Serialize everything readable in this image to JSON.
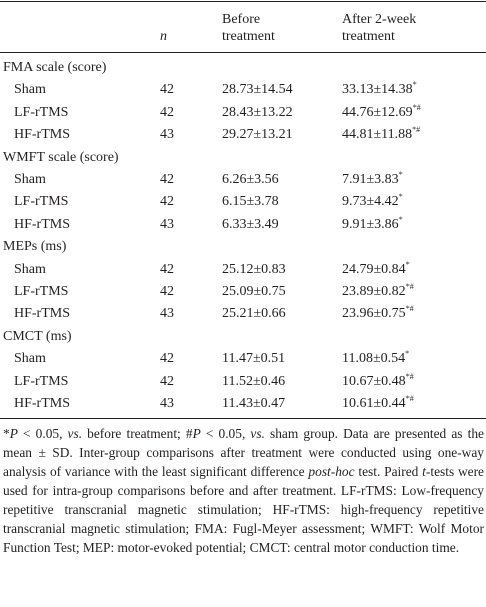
{
  "header": {
    "n": "n",
    "before": "Before treatment",
    "after": "After 2-week treatment"
  },
  "sections": [
    {
      "title": "FMA scale (score)",
      "rows": [
        {
          "group": "Sham",
          "n": 42,
          "before": "28.73±14.54",
          "after": "33.13±14.38",
          "mark": "*"
        },
        {
          "group": "LF-rTMS",
          "n": 42,
          "before": "28.43±13.22",
          "after": "44.76±12.69",
          "mark": "*#"
        },
        {
          "group": "HF-rTMS",
          "n": 43,
          "before": "29.27±13.21",
          "after": "44.81±11.88",
          "mark": "*#"
        }
      ]
    },
    {
      "title": "WMFT scale (score)",
      "rows": [
        {
          "group": "Sham",
          "n": 42,
          "before": "6.26±3.56",
          "after": "7.91±3.83",
          "mark": "*"
        },
        {
          "group": "LF-rTMS",
          "n": 42,
          "before": "6.15±3.78",
          "after": "9.73±4.42",
          "mark": "*"
        },
        {
          "group": "HF-rTMS",
          "n": 43,
          "before": "6.33±3.49",
          "after": "9.91±3.86",
          "mark": "*"
        }
      ]
    },
    {
      "title": "MEPs (ms)",
      "rows": [
        {
          "group": "Sham",
          "n": 42,
          "before": "25.12±0.83",
          "after": "24.79±0.84",
          "mark": "*"
        },
        {
          "group": "LF-rTMS",
          "n": 42,
          "before": "25.09±0.75",
          "after": "23.89±0.82",
          "mark": "*#"
        },
        {
          "group": "HF-rTMS",
          "n": 43,
          "before": "25.21±0.66",
          "after": "23.96±0.75",
          "mark": "*#"
        }
      ]
    },
    {
      "title": "CMCT (ms)",
      "rows": [
        {
          "group": "Sham",
          "n": 42,
          "before": "11.47±0.51",
          "after": "11.08±0.54",
          "mark": "*"
        },
        {
          "group": "LF-rTMS",
          "n": 42,
          "before": "11.52±0.46",
          "after": "10.67±0.48",
          "mark": "*#"
        },
        {
          "group": "HF-rTMS",
          "n": 43,
          "before": "11.43±0.47",
          "after": "10.61±0.44",
          "mark": "*#"
        }
      ]
    }
  ],
  "footnote": [
    {
      "text": "*",
      "italic": false
    },
    {
      "text": "P",
      "italic": true
    },
    {
      "text": " < 0.05, ",
      "italic": false
    },
    {
      "text": "vs.",
      "italic": true
    },
    {
      "text": " before treatment; #",
      "italic": false
    },
    {
      "text": "P",
      "italic": true
    },
    {
      "text": " < 0.05, ",
      "italic": false
    },
    {
      "text": "vs.",
      "italic": true
    },
    {
      "text": " sham group. Data are presented as the mean ± SD. Inter-group comparisons after treatment were conducted using one-way analysis of variance with the least significant difference ",
      "italic": false
    },
    {
      "text": "post-hoc",
      "italic": true
    },
    {
      "text": " test. Paired ",
      "italic": false
    },
    {
      "text": "t",
      "italic": true
    },
    {
      "text": "-tests were used for intra-group comparisons before and after treatment. LF-rTMS: Low-frequency repetitive transcranial magnetic stimulation; HF-rTMS: high-frequency repetitive transcranial magnetic stimulation; FMA: Fugl-Meyer assessment; WMFT: Wolf Motor Function Test; MEP: motor-evoked potential; CMCT: central motor conduction time.",
      "italic": false
    }
  ]
}
